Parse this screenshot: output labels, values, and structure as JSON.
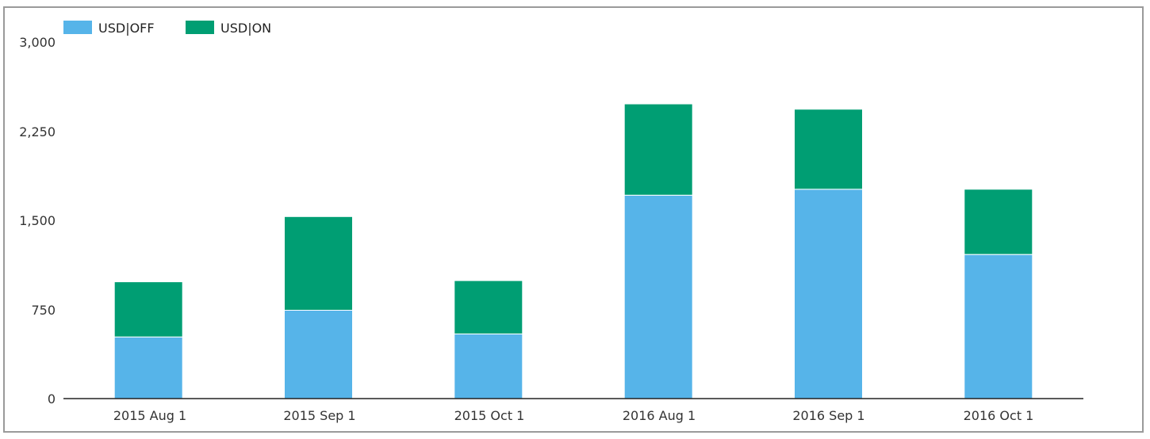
{
  "chart_data": {
    "type": "bar",
    "stacked": true,
    "categories": [
      "2015 Aug 1",
      "2015 Sep 1",
      "2015 Oct 1",
      "2016 Aug 1",
      "2016 Sep 1",
      "2016 Oct 1"
    ],
    "series": [
      {
        "name": "USD|OFF",
        "color": "#56b4e9",
        "values": [
          520,
          745,
          545,
          1715,
          1765,
          1215
        ]
      },
      {
        "name": "USD|ON",
        "color": "#009e73",
        "values": [
          465,
          790,
          450,
          770,
          675,
          550
        ]
      }
    ],
    "title": "",
    "xlabel": "",
    "ylabel": "",
    "ylim": [
      0,
      3000
    ],
    "yticks": [
      "0",
      "750",
      "1,500",
      "2,250",
      "3,000"
    ],
    "ytick_values": [
      0,
      750,
      1500,
      2250,
      3000
    ],
    "grid": false,
    "legend_position": "top-left"
  }
}
